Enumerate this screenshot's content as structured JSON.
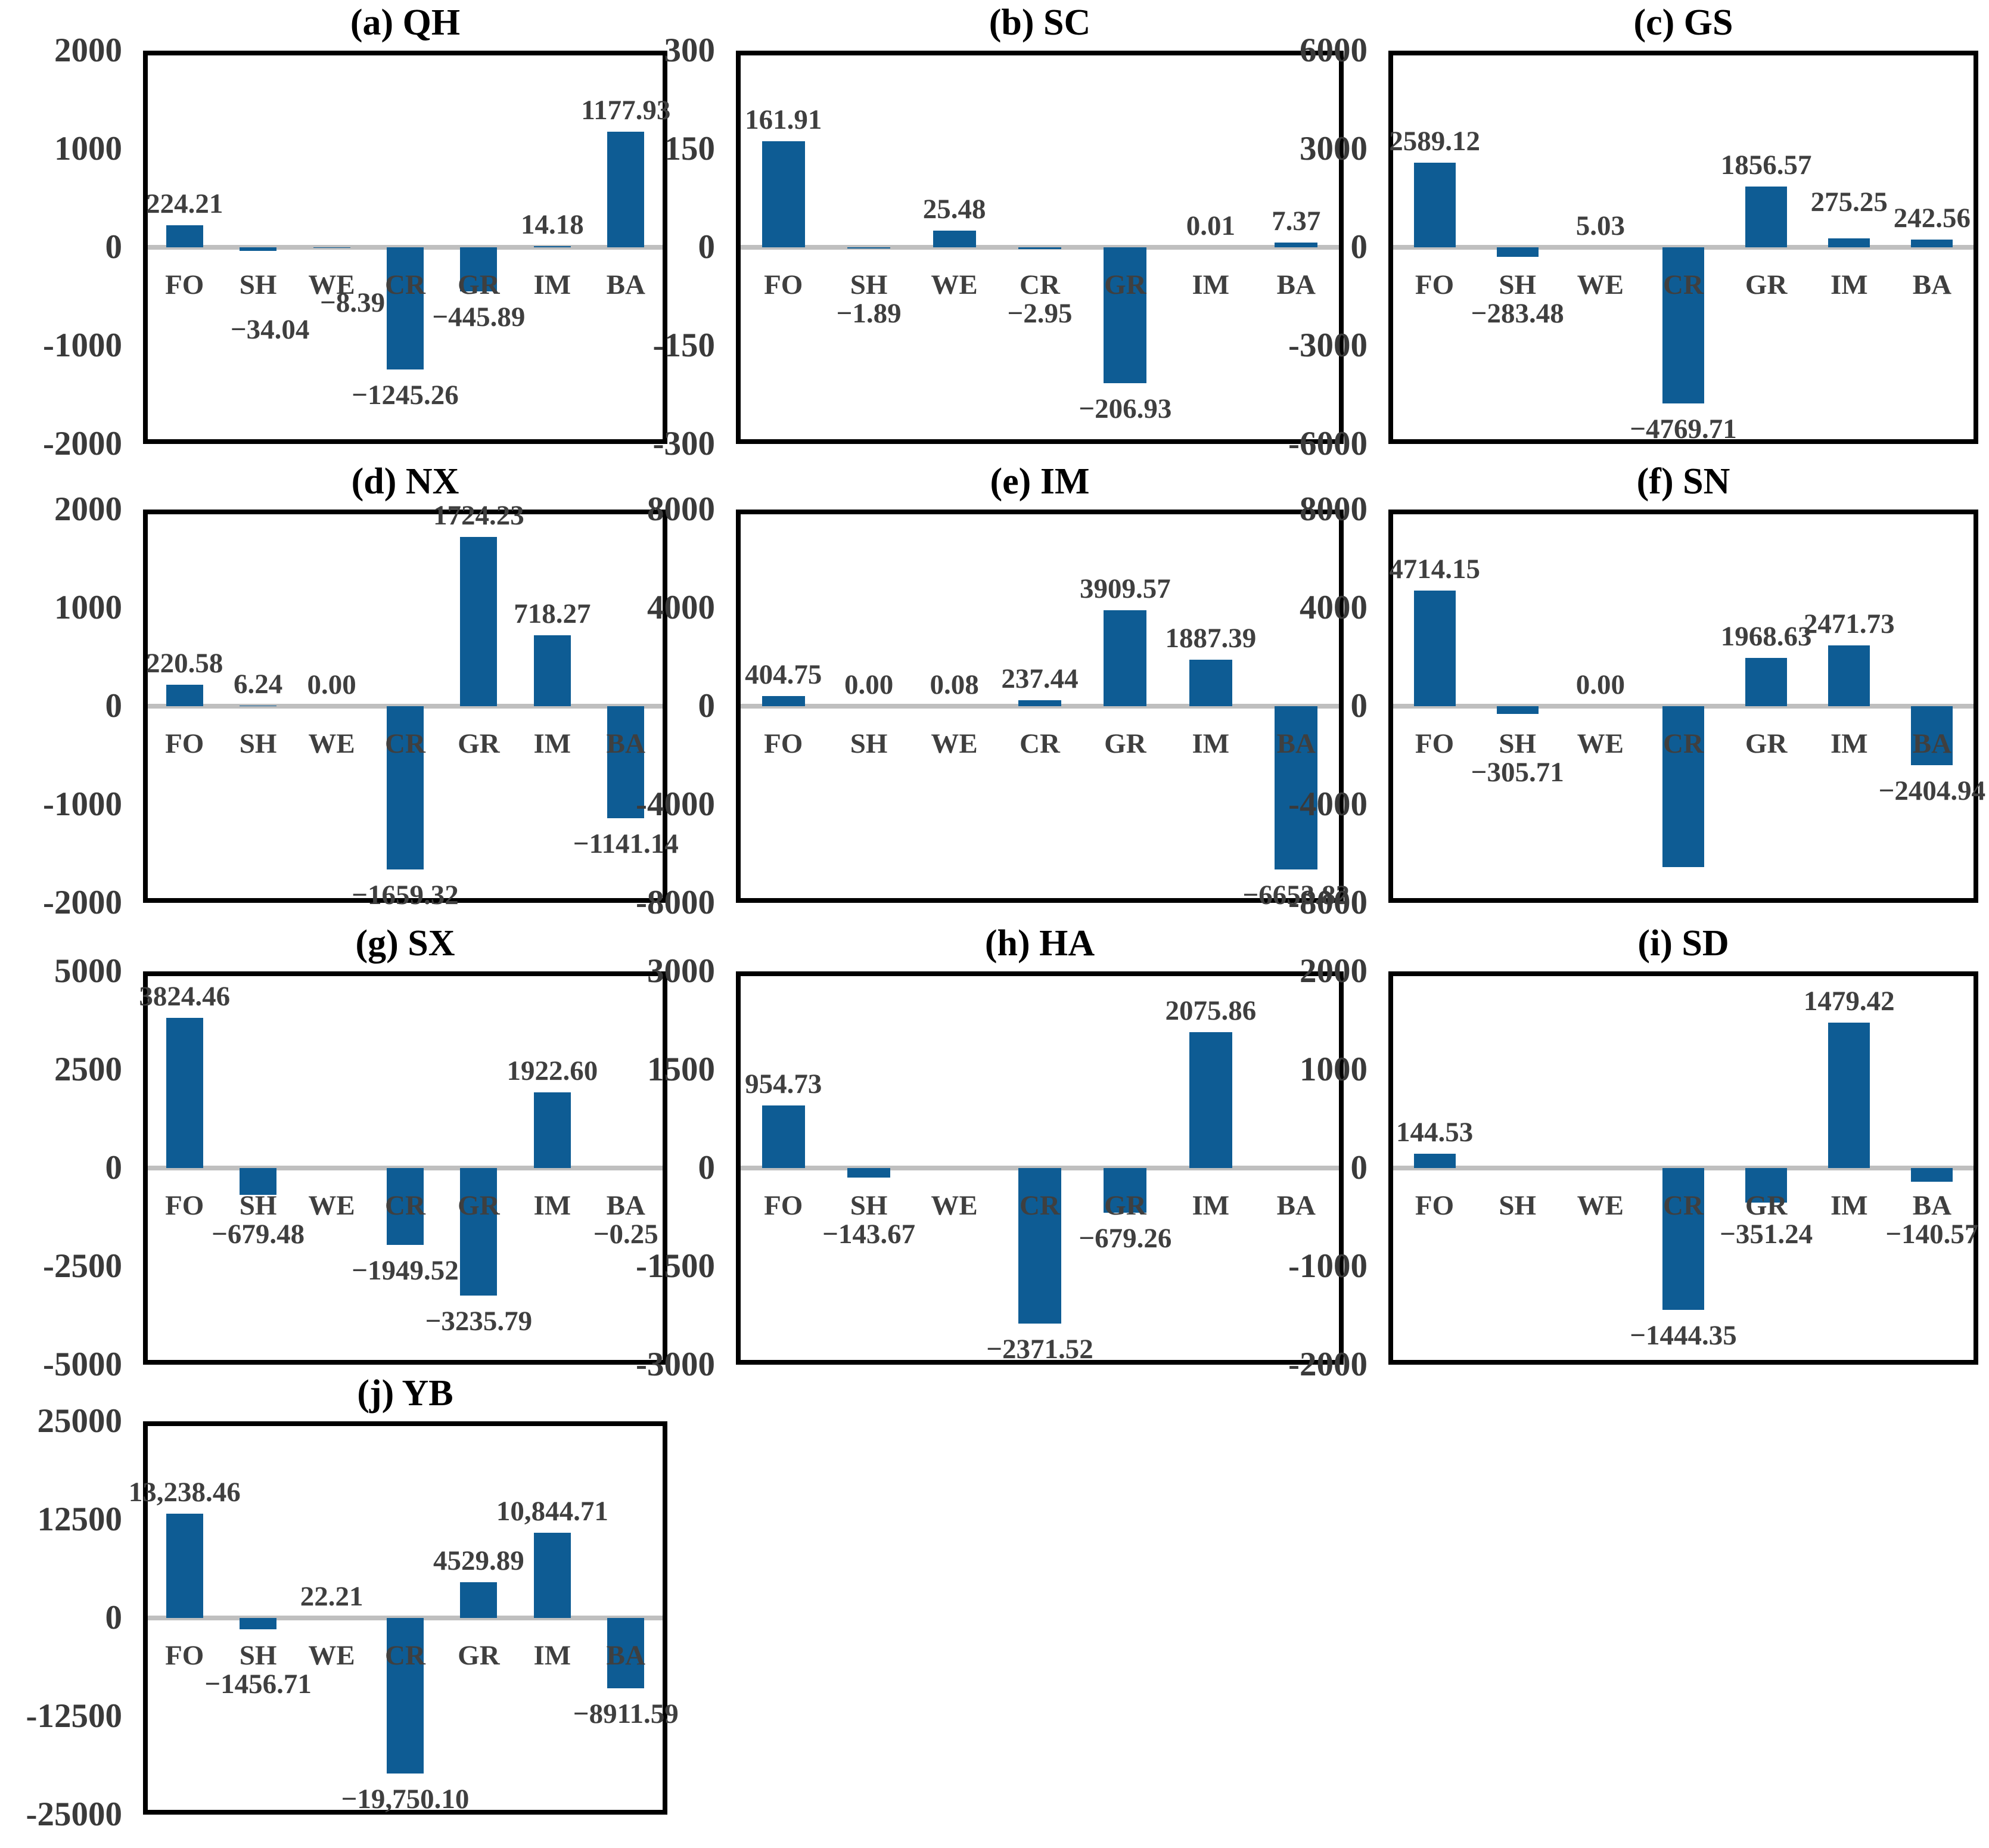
{
  "colors": {
    "bar": "#0E5C94",
    "zero_line": "#BFBFBF",
    "frame": "#000000",
    "tick_text": "#3A3A3A",
    "label_text": "#3F3F3F",
    "title_text": "#000000",
    "background": "#FFFFFF"
  },
  "chart_data": [
    {
      "id": "a",
      "title": "(a) QH",
      "type": "bar",
      "legend": "none",
      "grid": "off",
      "categories": [
        "FO",
        "SH",
        "WE",
        "CR",
        "GR",
        "IM",
        "BA"
      ],
      "values": [
        224.21,
        -34.04,
        -8.39,
        -1245.26,
        -445.89,
        14.18,
        1177.93
      ],
      "data_labels": [
        "224.21",
        "−34.04",
        "−8.39",
        "−1245.26",
        "−445.89",
        "14.18",
        "1177.93"
      ],
      "ylim": [
        -2000,
        2000
      ],
      "ytick_labels": [
        "2000",
        "1000",
        "0",
        "-1000",
        "-2000"
      ],
      "label_dx": {
        "1": 20,
        "2": 35
      },
      "label_dy": {
        "1": 27,
        "2": -18
      }
    },
    {
      "id": "b",
      "title": "(b) SC",
      "type": "bar",
      "legend": "none",
      "grid": "off",
      "categories": [
        "FO",
        "SH",
        "WE",
        "CR",
        "GR",
        "IM",
        "BA"
      ],
      "values": [
        161.91,
        -1.89,
        25.48,
        -2.95,
        -206.93,
        0.01,
        7.37
      ],
      "data_labels": [
        "161.91",
        "−1.89",
        "25.48",
        "−2.95",
        "−206.93",
        "0.01",
        "7.37"
      ],
      "ylim": [
        -300,
        300
      ],
      "ytick_labels": [
        "300",
        "150",
        "0",
        "-150",
        "-300"
      ],
      "label_dx": {},
      "label_dy": {}
    },
    {
      "id": "c",
      "title": "(c) GS",
      "type": "bar",
      "legend": "none",
      "grid": "off",
      "categories": [
        "FO",
        "SH",
        "WE",
        "CR",
        "GR",
        "IM",
        "BA"
      ],
      "values": [
        2589.12,
        -283.48,
        5.03,
        -4769.71,
        1856.57,
        275.25,
        242.56
      ],
      "data_labels": [
        "2589.12",
        "−283.48",
        "5.03",
        "−4769.71",
        "1856.57",
        "275.25",
        "242.56"
      ],
      "ylim": [
        -6000,
        6000
      ],
      "ytick_labels": [
        "6000",
        "3000",
        "0",
        "-3000",
        "-6000"
      ],
      "label_dx": {},
      "label_dy": {
        "5": -25
      }
    },
    {
      "id": "d",
      "title": "(d) NX",
      "type": "bar",
      "legend": "none",
      "grid": "off",
      "categories": [
        "FO",
        "SH",
        "WE",
        "CR",
        "GR",
        "IM",
        "BA"
      ],
      "values": [
        220.58,
        6.24,
        0,
        -1659.32,
        1724.23,
        718.27,
        -1141.14
      ],
      "data_labels": [
        "220.58",
        "6.24",
        "0.00",
        "−1659.32",
        "1724.23",
        "718.27",
        "−1141.14"
      ],
      "ylim": [
        -2000,
        2000
      ],
      "ytick_labels": [
        "2000",
        "1000",
        "0",
        "-1000",
        "-2000"
      ],
      "label_dx": {},
      "label_dy": {}
    },
    {
      "id": "e",
      "title": "(e) IM",
      "type": "bar",
      "legend": "none",
      "grid": "off",
      "categories": [
        "FO",
        "SH",
        "WE",
        "CR",
        "GR",
        "IM",
        "BA"
      ],
      "values": [
        404.75,
        0,
        0.08,
        237.44,
        3909.57,
        1887.39,
        -6653.82
      ],
      "data_labels": [
        "404.75",
        "0.00",
        "0.08",
        "237.44",
        "3909.57",
        "1887.39",
        "−6653.82"
      ],
      "ylim": [
        -8000,
        8000
      ],
      "ytick_labels": [
        "8000",
        "4000",
        "0",
        "-4000",
        "-8000"
      ],
      "label_dx": {},
      "label_dy": {}
    },
    {
      "id": "f",
      "title": "(f) SN",
      "type": "bar",
      "legend": "none",
      "grid": "off",
      "categories": [
        "FO",
        "SH",
        "WE",
        "CR",
        "GR",
        "IM",
        "BA"
      ],
      "values": [
        4714.15,
        -305.71,
        0,
        -6550,
        1968.63,
        2471.73,
        -2404.94
      ],
      "data_labels": [
        "4714.15",
        "−305.71",
        "0.00",
        "",
        "1968.63",
        "2471.73",
        "−2404.94"
      ],
      "ylim": [
        -8000,
        8000
      ],
      "ytick_labels": [
        "8000",
        "4000",
        "0",
        "-4000",
        "-8000"
      ],
      "label_dx": {},
      "label_dy": {}
    },
    {
      "id": "g",
      "title": "(g) SX",
      "type": "bar",
      "legend": "none",
      "grid": "off",
      "categories": [
        "FO",
        "SH",
        "WE",
        "CR",
        "GR",
        "IM",
        "BA"
      ],
      "values": [
        3824.46,
        -679.48,
        0,
        -1949.52,
        -3235.79,
        1922.6,
        -0.25
      ],
      "data_labels": [
        "3824.46",
        "−679.48",
        "",
        "−1949.52",
        "−3235.79",
        "1922.60",
        "−0.25"
      ],
      "ylim": [
        -5000,
        5000
      ],
      "ytick_labels": [
        "5000",
        "2500",
        "0",
        "-2500",
        "-5000"
      ],
      "label_dx": {},
      "label_dy": {}
    },
    {
      "id": "h",
      "title": "(h) HA",
      "type": "bar",
      "legend": "none",
      "grid": "off",
      "categories": [
        "FO",
        "SH",
        "WE",
        "CR",
        "GR",
        "IM",
        "BA"
      ],
      "values": [
        954.73,
        -143.67,
        0,
        -2371.52,
        -679.26,
        2075.86,
        0
      ],
      "data_labels": [
        "954.73",
        "−143.67",
        "",
        "−2371.52",
        "−679.26",
        "2075.86",
        ""
      ],
      "ylim": [
        -3000,
        3000
      ],
      "ytick_labels": [
        "3000",
        "1500",
        "0",
        "-1500",
        "-3000"
      ],
      "label_dx": {},
      "label_dy": {}
    },
    {
      "id": "i",
      "title": "(i) SD",
      "type": "bar",
      "legend": "none",
      "grid": "off",
      "categories": [
        "FO",
        "SH",
        "WE",
        "CR",
        "GR",
        "IM",
        "BA"
      ],
      "values": [
        144.53,
        0,
        0,
        -1444.35,
        -351.24,
        1479.42,
        -140.57
      ],
      "data_labels": [
        "144.53",
        "",
        "",
        "−1444.35",
        "−351.24",
        "1479.42",
        "−140.57"
      ],
      "ylim": [
        -2000,
        2000
      ],
      "ytick_labels": [
        "2000",
        "1000",
        "0",
        "-1000",
        "-2000"
      ],
      "label_dx": {},
      "label_dy": {}
    },
    {
      "id": "j",
      "title": "(j) YB",
      "type": "bar",
      "legend": "none",
      "grid": "off",
      "categories": [
        "FO",
        "SH",
        "WE",
        "CR",
        "GR",
        "IM",
        "BA"
      ],
      "values": [
        13238.46,
        -1456.71,
        22.21,
        -19750.1,
        4529.89,
        10844.71,
        -8911.59
      ],
      "data_labels": [
        "13,238.46",
        "−1456.71",
        "22.21",
        "−19,750.10",
        "4529.89",
        "10,844.71",
        "−8911.59"
      ],
      "ylim": [
        -25000,
        25000
      ],
      "ytick_labels": [
        "25000",
        "12500",
        "0",
        "-12500",
        "-25000"
      ],
      "label_dx": {},
      "label_dy": {}
    }
  ]
}
